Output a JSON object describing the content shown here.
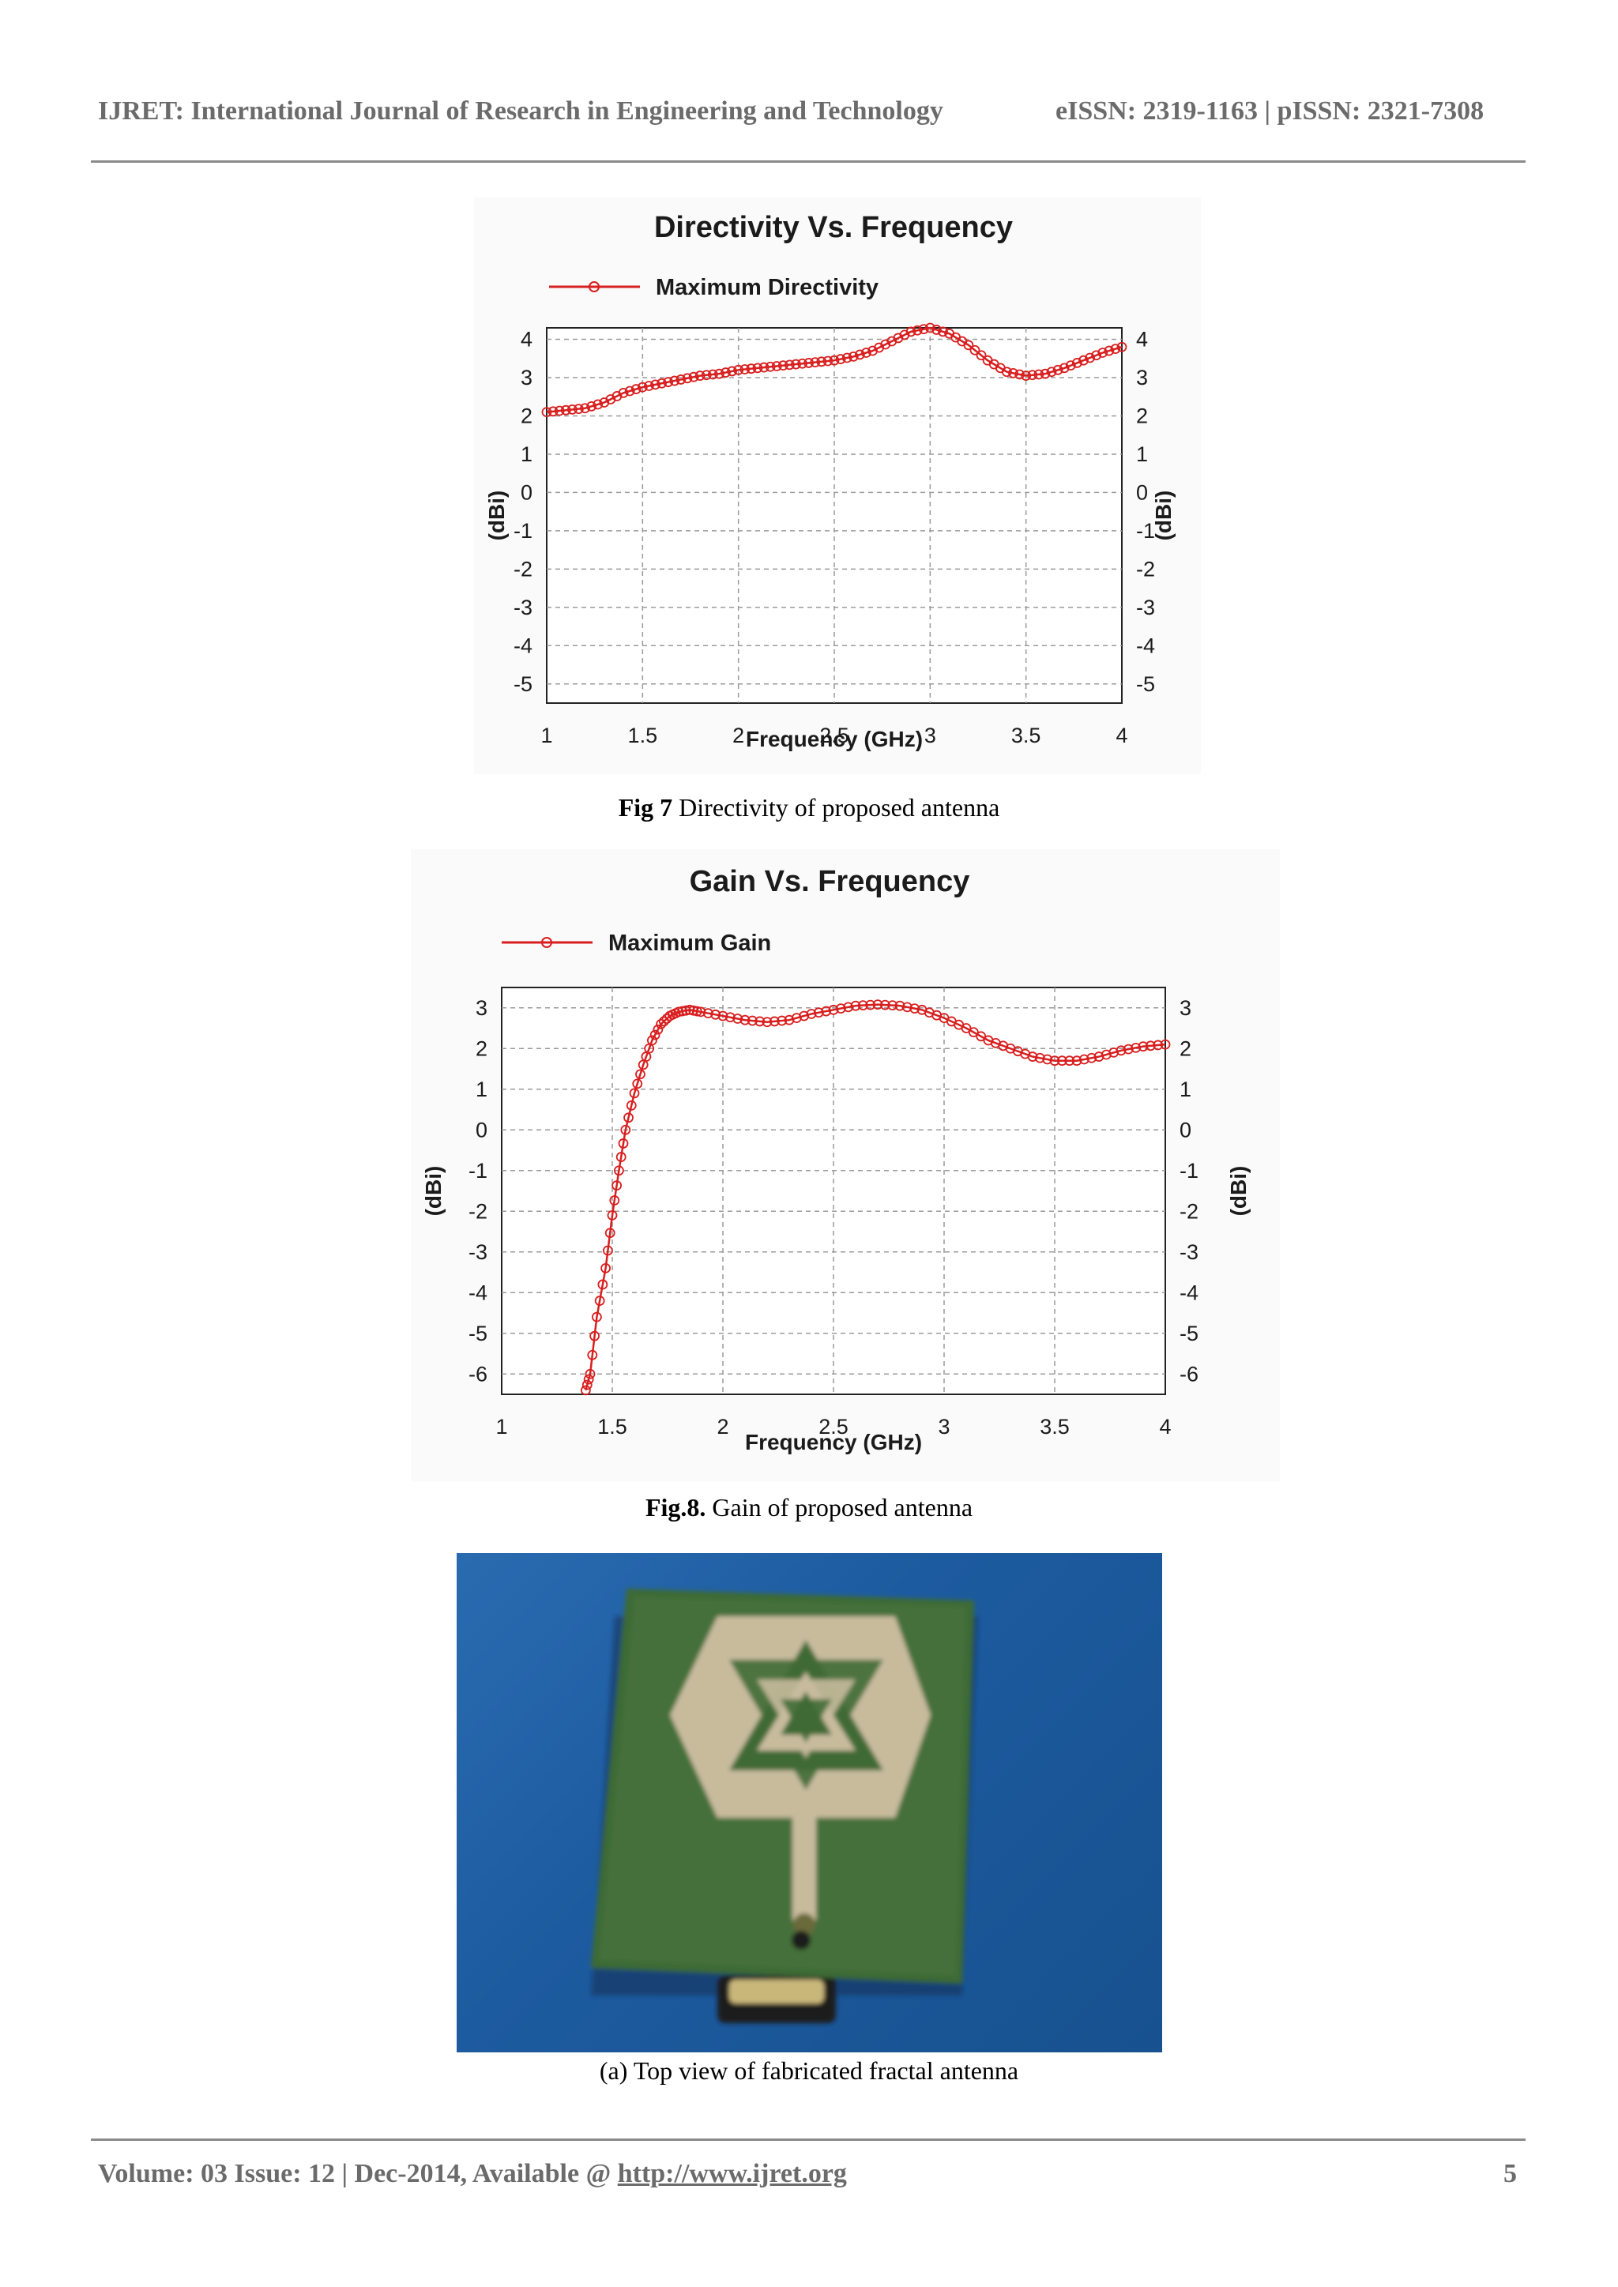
{
  "header": {
    "journal": "IJRET: International Journal of Research in Engineering and Technology",
    "issn": "eISSN: 2319-1163 | pISSN: 2321-7308"
  },
  "figures": {
    "fig7": {
      "caption_label": "Fig 7",
      "caption_text": " Directivity of proposed antenna"
    },
    "fig8": {
      "caption_label": "Fig.8.",
      "caption_text": " Gain of proposed antenna"
    },
    "photo": {
      "caption": "(a) Top view of fabricated fractal antenna"
    }
  },
  "chart_data": [
    {
      "type": "line",
      "title": "Directivity Vs. Frequency",
      "xlabel": "Frequency (GHz)",
      "ylabel": "(dBi)",
      "xlim": [
        1,
        4
      ],
      "ylim": [
        -5.5,
        4.3
      ],
      "xticks": [
        "1",
        "1.5",
        "2",
        "2.5",
        "3",
        "3.5",
        "4"
      ],
      "yticks": [
        "4",
        "3",
        "2",
        "1",
        "0",
        "-1",
        "-2",
        "-3",
        "-4",
        "-5"
      ],
      "grid": true,
      "legend": "top-left",
      "color": "#d81e1e",
      "series": [
        {
          "name": "Maximum Directivity",
          "x": [
            1.0,
            1.1,
            1.2,
            1.3,
            1.4,
            1.5,
            1.6,
            1.7,
            1.8,
            1.9,
            2.0,
            2.1,
            2.2,
            2.3,
            2.4,
            2.5,
            2.6,
            2.7,
            2.8,
            2.9,
            3.0,
            3.1,
            3.2,
            3.3,
            3.4,
            3.5,
            3.6,
            3.7,
            3.8,
            3.9,
            4.0
          ],
          "values": [
            2.1,
            2.15,
            2.2,
            2.35,
            2.6,
            2.75,
            2.85,
            2.95,
            3.05,
            3.1,
            3.2,
            3.25,
            3.3,
            3.35,
            3.4,
            3.45,
            3.55,
            3.7,
            3.95,
            4.2,
            4.3,
            4.15,
            3.85,
            3.45,
            3.15,
            3.05,
            3.1,
            3.25,
            3.45,
            3.65,
            3.8
          ]
        }
      ]
    },
    {
      "type": "line",
      "title": "Gain Vs. Frequency",
      "xlabel": "Frequency (GHz)",
      "ylabel": "(dBi)",
      "xlim": [
        1,
        4
      ],
      "ylim": [
        -6.5,
        3.5
      ],
      "xticks": [
        "1",
        "1.5",
        "2",
        "2.5",
        "3",
        "3.5",
        "4"
      ],
      "yticks": [
        "3",
        "2",
        "1",
        "0",
        "-1",
        "-2",
        "-3",
        "-4",
        "-5",
        "-6"
      ],
      "grid": true,
      "legend": "top-left",
      "color": "#d81e1e",
      "series": [
        {
          "name": "Maximum Gain",
          "x": [
            1.38,
            1.4,
            1.43,
            1.47,
            1.5,
            1.53,
            1.56,
            1.6,
            1.64,
            1.68,
            1.72,
            1.76,
            1.8,
            1.85,
            1.9,
            2.0,
            2.1,
            2.2,
            2.3,
            2.4,
            2.5,
            2.6,
            2.7,
            2.8,
            2.9,
            3.0,
            3.1,
            3.2,
            3.3,
            3.4,
            3.5,
            3.6,
            3.7,
            3.8,
            3.9,
            4.0
          ],
          "values": [
            -6.4,
            -6.0,
            -4.6,
            -3.4,
            -2.1,
            -1.0,
            0.0,
            0.9,
            1.6,
            2.2,
            2.6,
            2.8,
            2.9,
            2.95,
            2.9,
            2.8,
            2.7,
            2.65,
            2.7,
            2.85,
            2.95,
            3.05,
            3.08,
            3.05,
            2.95,
            2.75,
            2.5,
            2.2,
            2.0,
            1.8,
            1.7,
            1.7,
            1.8,
            1.95,
            2.05,
            2.1
          ]
        }
      ]
    }
  ],
  "footer": {
    "volume": "Volume: 03 Issue: 12 | Dec-2014, Available @ ",
    "url": "http://www.ijret.org",
    "page": "5"
  }
}
